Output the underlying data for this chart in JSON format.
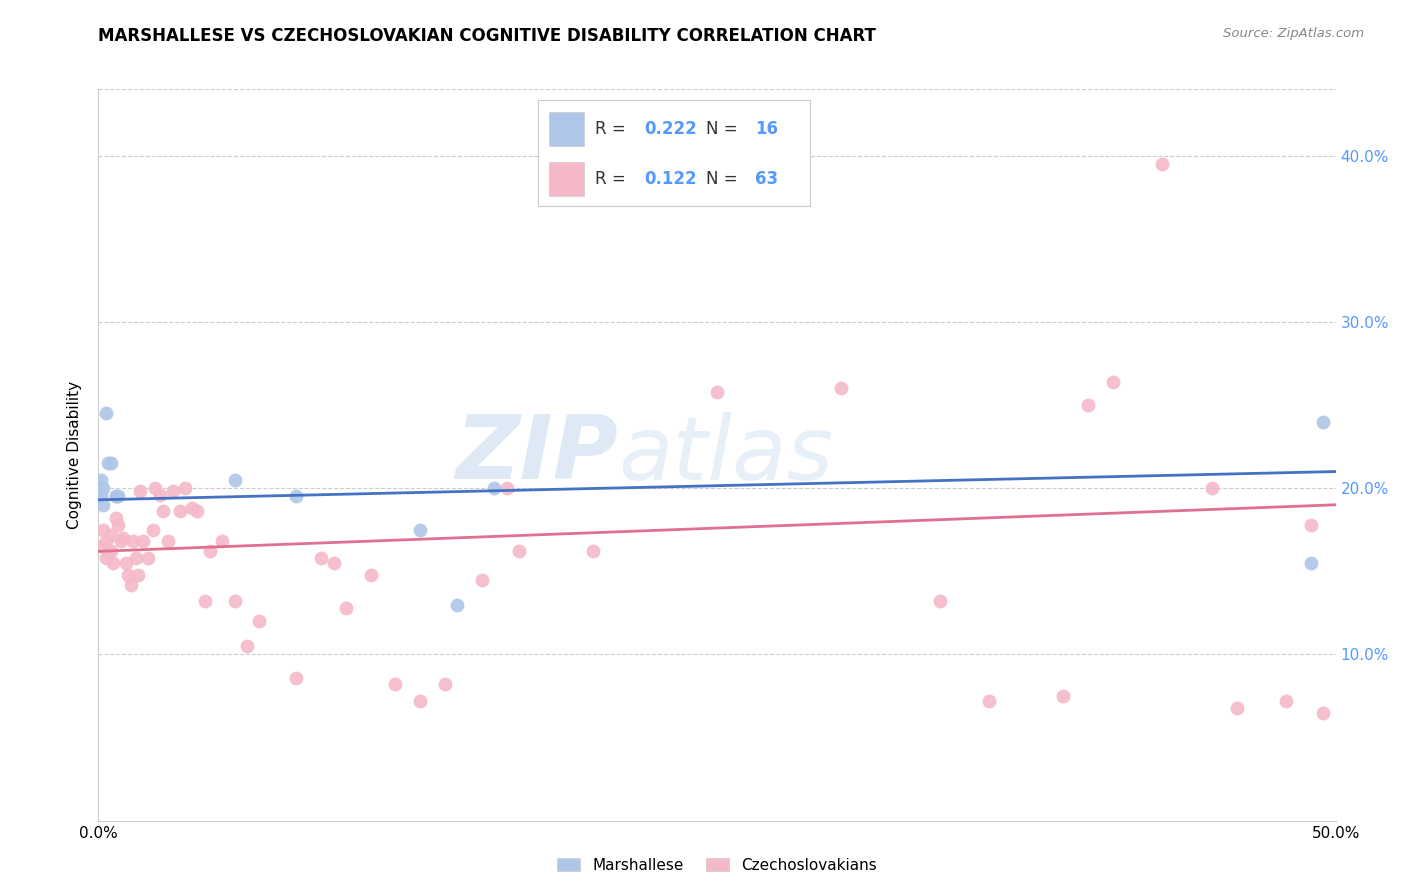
{
  "title": "MARSHALLESE VS CZECHOSLOVAKIAN COGNITIVE DISABILITY CORRELATION CHART",
  "source": "Source: ZipAtlas.com",
  "ylabel": "Cognitive Disability",
  "watermark": "ZIPatlas",
  "blue_R": 0.222,
  "blue_N": 16,
  "pink_R": 0.122,
  "pink_N": 63,
  "blue_color": "#aec6e8",
  "pink_color": "#f4b8c8",
  "blue_line_color": "#4472c4",
  "pink_line_color": "#e07090",
  "legend_label_blue": "Marshallese",
  "legend_label_pink": "Czechoslovakians",
  "right_axis_color": "#5599ff",
  "xlim": [
    0.0,
    0.5
  ],
  "ylim": [
    0.0,
    0.44
  ],
  "yticks": [
    0.1,
    0.2,
    0.3,
    0.4
  ],
  "ytick_labels": [
    "10.0%",
    "20.0%",
    "30.0%",
    "40.0%"
  ],
  "blue_points_x": [
    0.001,
    0.001,
    0.002,
    0.002,
    0.003,
    0.004,
    0.005,
    0.007,
    0.008,
    0.055,
    0.08,
    0.13,
    0.145,
    0.16,
    0.49,
    0.495
  ],
  "blue_points_y": [
    0.195,
    0.205,
    0.19,
    0.2,
    0.245,
    0.215,
    0.215,
    0.195,
    0.195,
    0.205,
    0.195,
    0.175,
    0.13,
    0.2,
    0.155,
    0.24
  ],
  "pink_points_x": [
    0.001,
    0.002,
    0.003,
    0.003,
    0.004,
    0.005,
    0.005,
    0.006,
    0.007,
    0.007,
    0.008,
    0.009,
    0.01,
    0.011,
    0.012,
    0.013,
    0.014,
    0.015,
    0.016,
    0.017,
    0.018,
    0.02,
    0.022,
    0.023,
    0.025,
    0.026,
    0.028,
    0.03,
    0.033,
    0.035,
    0.038,
    0.04,
    0.043,
    0.045,
    0.05,
    0.055,
    0.06,
    0.065,
    0.08,
    0.09,
    0.095,
    0.1,
    0.11,
    0.12,
    0.13,
    0.14,
    0.155,
    0.165,
    0.17,
    0.2,
    0.25,
    0.3,
    0.34,
    0.36,
    0.39,
    0.4,
    0.41,
    0.43,
    0.45,
    0.46,
    0.48,
    0.49,
    0.495
  ],
  "pink_points_y": [
    0.165,
    0.175,
    0.158,
    0.168,
    0.162,
    0.162,
    0.172,
    0.155,
    0.182,
    0.195,
    0.178,
    0.168,
    0.17,
    0.155,
    0.148,
    0.142,
    0.168,
    0.158,
    0.148,
    0.198,
    0.168,
    0.158,
    0.175,
    0.2,
    0.196,
    0.186,
    0.168,
    0.198,
    0.186,
    0.2,
    0.188,
    0.186,
    0.132,
    0.162,
    0.168,
    0.132,
    0.105,
    0.12,
    0.086,
    0.158,
    0.155,
    0.128,
    0.148,
    0.082,
    0.072,
    0.082,
    0.145,
    0.2,
    0.162,
    0.162,
    0.258,
    0.26,
    0.132,
    0.072,
    0.075,
    0.25,
    0.264,
    0.395,
    0.2,
    0.068,
    0.072,
    0.178,
    0.065
  ]
}
